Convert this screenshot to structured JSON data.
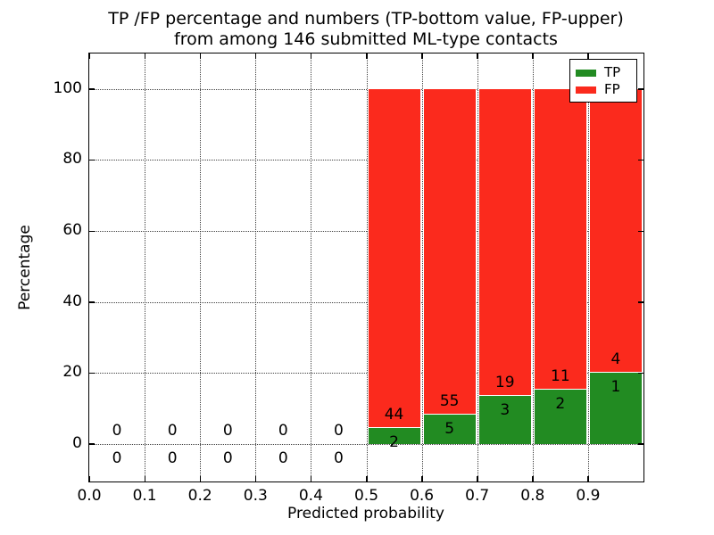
{
  "title": {
    "line1": "TP /FP percentage and numbers (TP-bottom value, FP-upper)",
    "line2": "from among 146 submitted ML-type contacts"
  },
  "chart_data": {
    "type": "bar",
    "stacked": true,
    "normalized_to_percent": true,
    "title": "TP /FP percentage and numbers (TP-bottom value, FP-upper) from among 146 submitted ML-type contacts",
    "xlabel": "Predicted probability",
    "ylabel": "Percentage",
    "xlim": [
      0.0,
      1.0
    ],
    "ylim": [
      -10.6,
      110
    ],
    "xticks": [
      "0.0",
      "0.1",
      "0.2",
      "0.3",
      "0.4",
      "0.5",
      "0.6",
      "0.7",
      "0.8",
      "0.9"
    ],
    "yticks": [
      0,
      20,
      40,
      60,
      80,
      100
    ],
    "grid": "dotted",
    "total_contacts": 146,
    "colors": {
      "tp": "#228b22",
      "fp": "#fb2a1d"
    },
    "legend": {
      "position": "upper right",
      "entries": [
        {
          "label": "TP",
          "color": "#228b22"
        },
        {
          "label": "FP",
          "color": "#fb2a1d"
        }
      ]
    },
    "bins": [
      {
        "range": [
          0.0,
          0.1
        ],
        "tp_count": 0,
        "fp_count": 0,
        "tp_pct": 0,
        "fp_pct": 0
      },
      {
        "range": [
          0.1,
          0.2
        ],
        "tp_count": 0,
        "fp_count": 0,
        "tp_pct": 0,
        "fp_pct": 0
      },
      {
        "range": [
          0.2,
          0.3
        ],
        "tp_count": 0,
        "fp_count": 0,
        "tp_pct": 0,
        "fp_pct": 0
      },
      {
        "range": [
          0.3,
          0.4
        ],
        "tp_count": 0,
        "fp_count": 0,
        "tp_pct": 0,
        "fp_pct": 0
      },
      {
        "range": [
          0.4,
          0.5
        ],
        "tp_count": 0,
        "fp_count": 0,
        "tp_pct": 0,
        "fp_pct": 0
      },
      {
        "range": [
          0.5,
          0.6
        ],
        "tp_count": 2,
        "fp_count": 44,
        "tp_pct": 4.35,
        "fp_pct": 95.65
      },
      {
        "range": [
          0.6,
          0.7
        ],
        "tp_count": 5,
        "fp_count": 55,
        "tp_pct": 8.33,
        "fp_pct": 91.67
      },
      {
        "range": [
          0.7,
          0.8
        ],
        "tp_count": 3,
        "fp_count": 19,
        "tp_pct": 13.64,
        "fp_pct": 86.36
      },
      {
        "range": [
          0.8,
          0.9
        ],
        "tp_count": 2,
        "fp_count": 11,
        "tp_pct": 15.38,
        "fp_pct": 84.62
      },
      {
        "range": [
          0.9,
          1.0
        ],
        "tp_count": 1,
        "fp_count": 4,
        "tp_pct": 20.0,
        "fp_pct": 80.0
      }
    ]
  }
}
